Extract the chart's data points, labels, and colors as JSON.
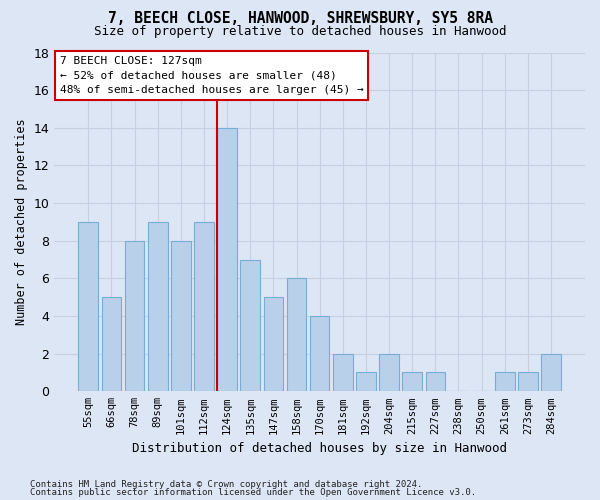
{
  "title1": "7, BEECH CLOSE, HANWOOD, SHREWSBURY, SY5 8RA",
  "title2": "Size of property relative to detached houses in Hanwood",
  "xlabel": "Distribution of detached houses by size in Hanwood",
  "ylabel": "Number of detached properties",
  "bar_labels": [
    "55sqm",
    "66sqm",
    "78sqm",
    "89sqm",
    "101sqm",
    "112sqm",
    "124sqm",
    "135sqm",
    "147sqm",
    "158sqm",
    "170sqm",
    "181sqm",
    "192sqm",
    "204sqm",
    "215sqm",
    "227sqm",
    "238sqm",
    "250sqm",
    "261sqm",
    "273sqm",
    "284sqm"
  ],
  "bar_values": [
    9,
    5,
    8,
    9,
    8,
    9,
    14,
    7,
    5,
    6,
    4,
    2,
    1,
    2,
    1,
    1,
    0,
    0,
    1,
    1,
    2
  ],
  "bar_color": "#b8d0ea",
  "bar_edgecolor": "#7aadd4",
  "property_label": "7 BEECH CLOSE: 127sqm",
  "annotation_line1": "← 52% of detached houses are smaller (48)",
  "annotation_line2": "48% of semi-detached houses are larger (45) →",
  "vline_color": "#cc0000",
  "vline_index": 6,
  "annotation_box_facecolor": "#ffffff",
  "annotation_box_edgecolor": "#cc0000",
  "ylim": [
    0,
    18
  ],
  "yticks": [
    0,
    2,
    4,
    6,
    8,
    10,
    12,
    14,
    16,
    18
  ],
  "grid_color": "#c8cfe0",
  "background_color": "#dce6f5",
  "footnote1": "Contains HM Land Registry data © Crown copyright and database right 2024.",
  "footnote2": "Contains public sector information licensed under the Open Government Licence v3.0."
}
